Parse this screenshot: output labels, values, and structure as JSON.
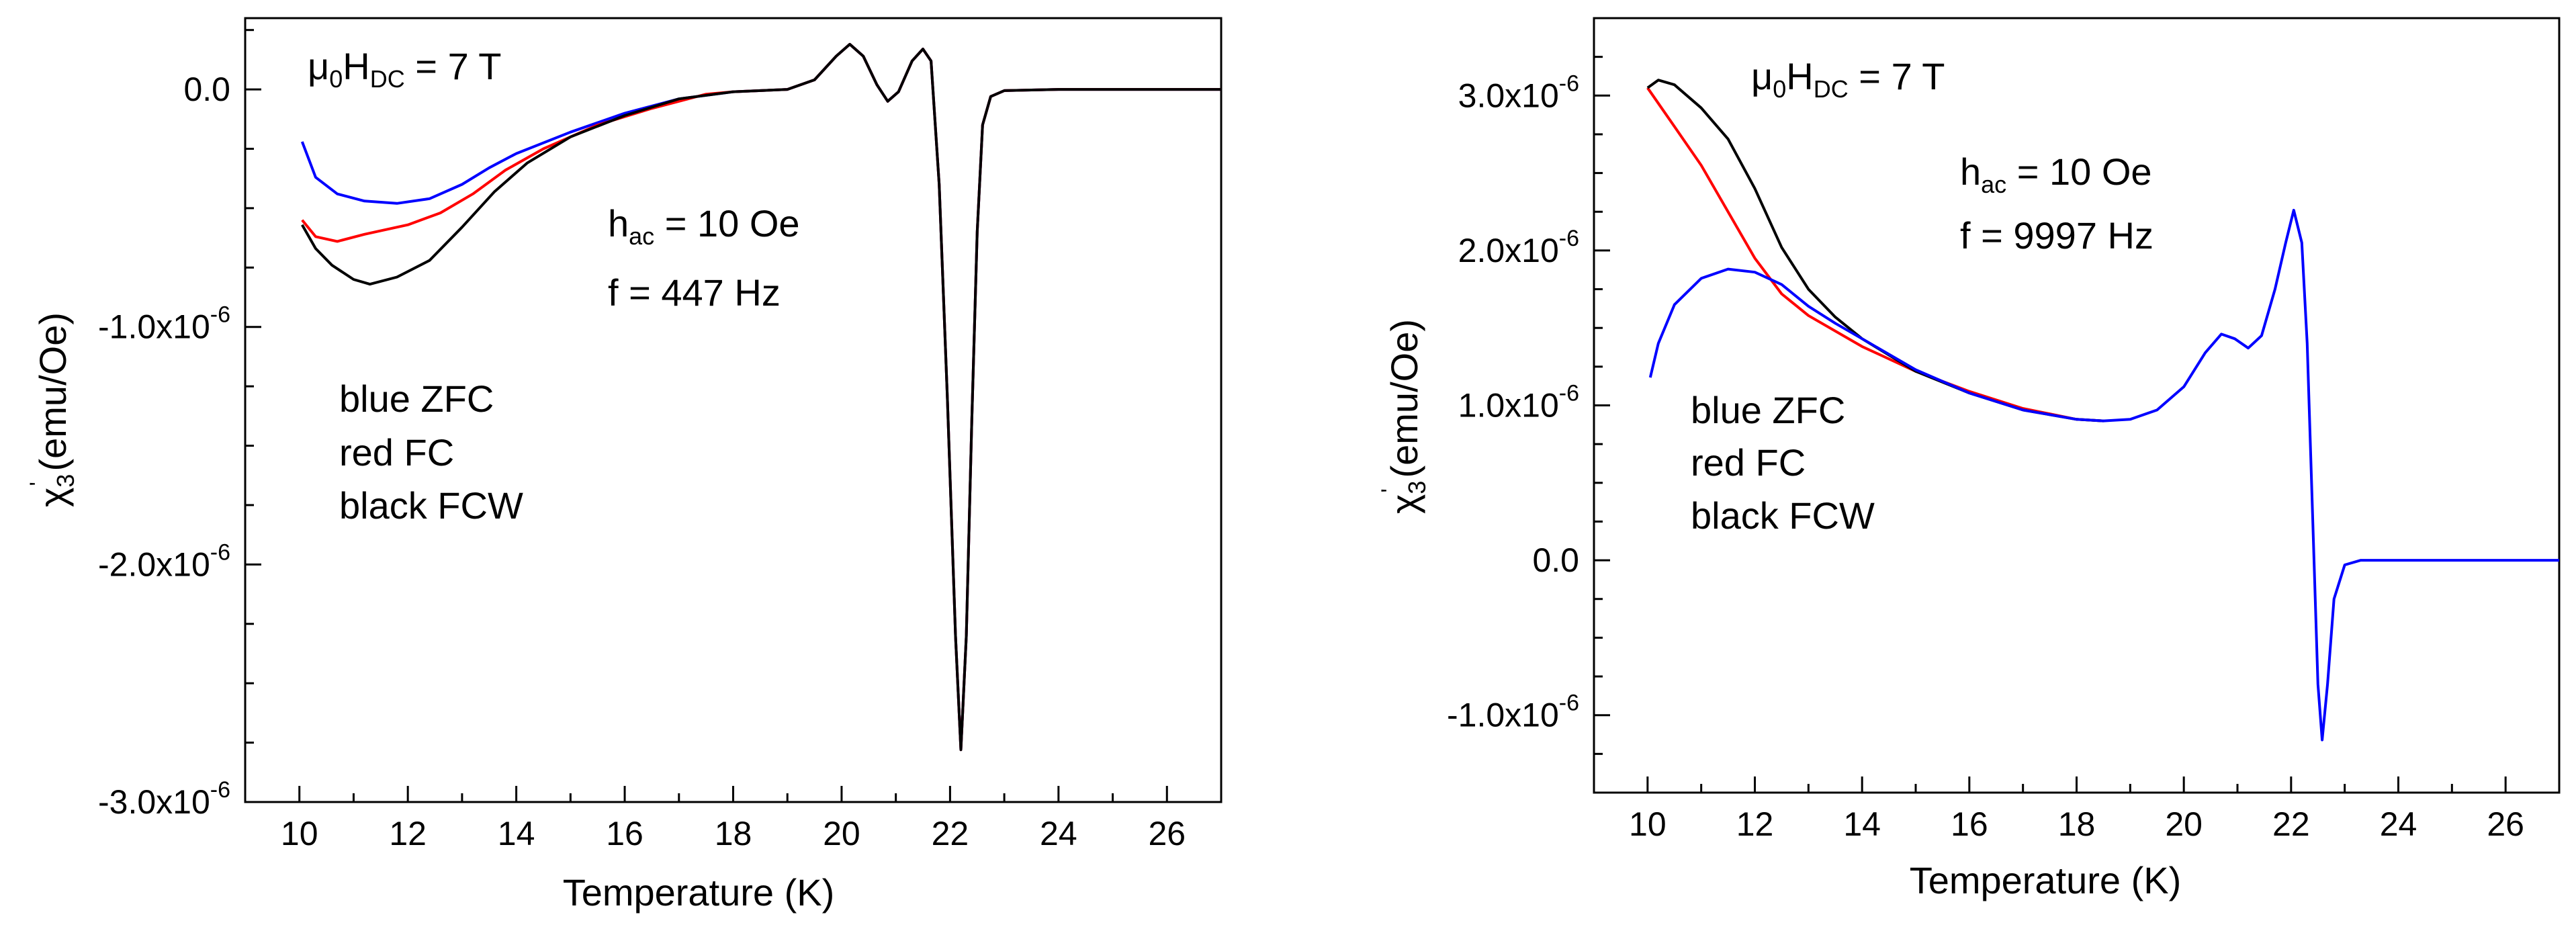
{
  "chart_data": [
    {
      "type": "line",
      "xlabel": "Temperature (K)",
      "ylabel": {
        "symbol": "χ",
        "sub": "3",
        "sup": "'",
        "unit": " (emu/Oe)"
      },
      "xlim": [
        9,
        27
      ],
      "ylim": [
        -3e-06,
        3e-07
      ],
      "x_ticks": [
        10,
        12,
        14,
        16,
        18,
        20,
        22,
        24,
        26
      ],
      "y_ticks": [
        {
          "value": 0.0,
          "mant": "0.0",
          "exp": ""
        },
        {
          "value": -1e-06,
          "mant": "-1.0x10",
          "exp": "-6"
        },
        {
          "value": -2e-06,
          "mant": "-2.0x10",
          "exp": "-6"
        },
        {
          "value": -3e-06,
          "mant": "-3.0x10",
          "exp": "-6"
        }
      ],
      "field": {
        "pre": "μ",
        "sub1": "0",
        "mid": "H",
        "sub2": "DC",
        "post": " = 7 T"
      },
      "hac": {
        "pre": "h",
        "sub": "ac",
        "post": " = 10 Oe"
      },
      "freq": "f = 447 Hz",
      "legend": [
        "blue ZFC",
        "red FC",
        "black FCW"
      ],
      "series": [
        {
          "name": "ZFC",
          "color": "#0000ff",
          "points": [
            [
              10.05,
              -2.2e-07
            ],
            [
              10.3,
              -3.7e-07
            ],
            [
              10.7,
              -4.4e-07
            ],
            [
              11.2,
              -4.7e-07
            ],
            [
              11.8,
              -4.8e-07
            ],
            [
              12.4,
              -4.6e-07
            ],
            [
              13.0,
              -4e-07
            ],
            [
              13.5,
              -3.3e-07
            ],
            [
              14.0,
              -2.7e-07
            ],
            [
              15.0,
              -1.8e-07
            ],
            [
              16.0,
              -1e-07
            ],
            [
              17.0,
              -4e-08
            ],
            [
              18.0,
              -1e-08
            ],
            [
              19.0,
              0.0
            ],
            [
              19.5,
              4e-08
            ],
            [
              19.9,
              1.4e-07
            ],
            [
              20.15,
              1.9e-07
            ],
            [
              20.4,
              1.4e-07
            ],
            [
              20.65,
              2e-08
            ],
            [
              20.85,
              -5e-08
            ],
            [
              21.05,
              -1e-08
            ],
            [
              21.3,
              1.2e-07
            ],
            [
              21.5,
              1.7e-07
            ],
            [
              21.65,
              1.2e-07
            ],
            [
              21.8,
              -4e-07
            ],
            [
              21.95,
              -1.3e-06
            ],
            [
              22.1,
              -2.3e-06
            ],
            [
              22.2,
              -2.78e-06
            ],
            [
              22.3,
              -2.3e-06
            ],
            [
              22.4,
              -1.4e-06
            ],
            [
              22.5,
              -6e-07
            ],
            [
              22.6,
              -1.5e-07
            ],
            [
              22.75,
              -3e-08
            ],
            [
              23.0,
              -5e-09
            ],
            [
              24.0,
              0.0
            ],
            [
              25.0,
              0.0
            ],
            [
              26.0,
              0.0
            ],
            [
              27.0,
              0.0
            ]
          ]
        },
        {
          "name": "FC",
          "color": "#ff0000",
          "points": [
            [
              10.05,
              -5.5e-07
            ],
            [
              10.3,
              -6.2e-07
            ],
            [
              10.7,
              -6.4e-07
            ],
            [
              11.2,
              -6.1e-07
            ],
            [
              12.0,
              -5.7e-07
            ],
            [
              12.6,
              -5.2e-07
            ],
            [
              13.2,
              -4.4e-07
            ],
            [
              13.8,
              -3.4e-07
            ],
            [
              14.5,
              -2.5e-07
            ],
            [
              15.5,
              -1.5e-07
            ],
            [
              16.5,
              -8e-08
            ],
            [
              17.5,
              -2e-08
            ],
            [
              18.0,
              -1e-08
            ],
            [
              19.0,
              0.0
            ],
            [
              19.5,
              4e-08
            ],
            [
              19.9,
              1.4e-07
            ],
            [
              20.15,
              1.9e-07
            ],
            [
              20.4,
              1.4e-07
            ],
            [
              20.65,
              2e-08
            ],
            [
              20.85,
              -5e-08
            ],
            [
              21.05,
              -1e-08
            ],
            [
              21.3,
              1.2e-07
            ],
            [
              21.5,
              1.7e-07
            ],
            [
              21.65,
              1.2e-07
            ],
            [
              21.8,
              -4e-07
            ],
            [
              21.95,
              -1.3e-06
            ],
            [
              22.1,
              -2.3e-06
            ],
            [
              22.2,
              -2.78e-06
            ],
            [
              22.3,
              -2.3e-06
            ],
            [
              22.4,
              -1.4e-06
            ],
            [
              22.5,
              -6e-07
            ],
            [
              22.6,
              -1.5e-07
            ],
            [
              22.75,
              -3e-08
            ],
            [
              23.0,
              -5e-09
            ],
            [
              24.0,
              0.0
            ],
            [
              25.0,
              0.0
            ],
            [
              26.0,
              0.0
            ],
            [
              27.0,
              0.0
            ]
          ]
        },
        {
          "name": "FCW",
          "color": "#000000",
          "points": [
            [
              10.05,
              -5.7e-07
            ],
            [
              10.3,
              -6.7e-07
            ],
            [
              10.6,
              -7.4e-07
            ],
            [
              11.0,
              -8e-07
            ],
            [
              11.3,
              -8.2e-07
            ],
            [
              11.8,
              -7.9e-07
            ],
            [
              12.4,
              -7.2e-07
            ],
            [
              13.0,
              -5.8e-07
            ],
            [
              13.6,
              -4.3e-07
            ],
            [
              14.2,
              -3.1e-07
            ],
            [
              15.0,
              -2e-07
            ],
            [
              16.0,
              -1.1e-07
            ],
            [
              17.0,
              -4e-08
            ],
            [
              18.0,
              -1e-08
            ],
            [
              19.0,
              0.0
            ],
            [
              19.5,
              4e-08
            ],
            [
              19.9,
              1.4e-07
            ],
            [
              20.15,
              1.9e-07
            ],
            [
              20.4,
              1.4e-07
            ],
            [
              20.65,
              2e-08
            ],
            [
              20.85,
              -5e-08
            ],
            [
              21.05,
              -1e-08
            ],
            [
              21.3,
              1.2e-07
            ],
            [
              21.5,
              1.7e-07
            ],
            [
              21.65,
              1.2e-07
            ],
            [
              21.8,
              -4e-07
            ],
            [
              21.95,
              -1.3e-06
            ],
            [
              22.1,
              -2.3e-06
            ],
            [
              22.2,
              -2.78e-06
            ],
            [
              22.3,
              -2.3e-06
            ],
            [
              22.4,
              -1.4e-06
            ],
            [
              22.5,
              -6e-07
            ],
            [
              22.6,
              -1.5e-07
            ],
            [
              22.75,
              -3e-08
            ],
            [
              23.0,
              -5e-09
            ],
            [
              24.0,
              0.0
            ],
            [
              25.0,
              0.0
            ],
            [
              26.0,
              0.0
            ],
            [
              27.0,
              0.0
            ]
          ]
        }
      ]
    },
    {
      "type": "line",
      "xlabel": "Temperature (K)",
      "ylabel": {
        "symbol": "χ",
        "sub": "3",
        "sup": "'",
        "unit": " (emu/Oe)"
      },
      "xlim": [
        9,
        27
      ],
      "ylim": [
        -1.5e-06,
        3.5e-06
      ],
      "x_ticks": [
        10,
        12,
        14,
        16,
        18,
        20,
        22,
        24,
        26
      ],
      "y_ticks": [
        {
          "value": 3e-06,
          "mant": "3.0x10",
          "exp": "-6"
        },
        {
          "value": 2e-06,
          "mant": "2.0x10",
          "exp": "-6"
        },
        {
          "value": 1e-06,
          "mant": "1.0x10",
          "exp": "-6"
        },
        {
          "value": 0.0,
          "mant": "0.0",
          "exp": ""
        },
        {
          "value": -1e-06,
          "mant": "-1.0x10",
          "exp": "-6"
        }
      ],
      "field": {
        "pre": "μ",
        "sub1": "0",
        "mid": "H",
        "sub2": "DC",
        "post": " = 7 T"
      },
      "hac": {
        "pre": "h",
        "sub": "ac",
        "post": " = 10 Oe"
      },
      "freq": "f = 9997 Hz",
      "legend": [
        "blue ZFC",
        "red FC",
        "black FCW"
      ],
      "series": [
        {
          "name": "FC",
          "color": "#ff0000",
          "points": [
            [
              10.0,
              3.05e-06
            ],
            [
              10.2,
              2.95e-06
            ],
            [
              10.5,
              2.8e-06
            ],
            [
              11.0,
              2.55e-06
            ],
            [
              11.5,
              2.25e-06
            ],
            [
              12.0,
              1.95e-06
            ],
            [
              12.5,
              1.72e-06
            ],
            [
              13.0,
              1.58e-06
            ],
            [
              14.0,
              1.38e-06
            ],
            [
              15.0,
              1.22e-06
            ],
            [
              16.0,
              1.09e-06
            ],
            [
              17.0,
              9.8e-07
            ],
            [
              18.0,
              9.1e-07
            ],
            [
              18.5,
              9e-07
            ]
          ]
        },
        {
          "name": "FCW",
          "color": "#000000",
          "points": [
            [
              10.0,
              3.05e-06
            ],
            [
              10.2,
              3.1e-06
            ],
            [
              10.5,
              3.07e-06
            ],
            [
              11.0,
              2.92e-06
            ],
            [
              11.5,
              2.72e-06
            ],
            [
              12.0,
              2.4e-06
            ],
            [
              12.5,
              2.02e-06
            ],
            [
              13.0,
              1.75e-06
            ],
            [
              13.5,
              1.57e-06
            ],
            [
              14.0,
              1.43e-06
            ],
            [
              15.0,
              1.22e-06
            ],
            [
              16.0,
              1.08e-06
            ],
            [
              17.0,
              9.7e-07
            ],
            [
              18.0,
              9.1e-07
            ],
            [
              18.5,
              9e-07
            ]
          ]
        },
        {
          "name": "ZFC",
          "color": "#0000ff",
          "points": [
            [
              10.05,
              1.18e-06
            ],
            [
              10.2,
              1.4e-06
            ],
            [
              10.5,
              1.65e-06
            ],
            [
              11.0,
              1.82e-06
            ],
            [
              11.5,
              1.88e-06
            ],
            [
              12.0,
              1.86e-06
            ],
            [
              12.5,
              1.78e-06
            ],
            [
              13.0,
              1.64e-06
            ],
            [
              13.5,
              1.53e-06
            ],
            [
              14.0,
              1.43e-06
            ],
            [
              15.0,
              1.23e-06
            ],
            [
              16.0,
              1.08e-06
            ],
            [
              17.0,
              9.7e-07
            ],
            [
              18.0,
              9.1e-07
            ],
            [
              18.5,
              9e-07
            ],
            [
              19.0,
              9.1e-07
            ],
            [
              19.5,
              9.7e-07
            ],
            [
              20.0,
              1.12e-06
            ],
            [
              20.4,
              1.34e-06
            ],
            [
              20.7,
              1.46e-06
            ],
            [
              20.95,
              1.43e-06
            ],
            [
              21.2,
              1.37e-06
            ],
            [
              21.45,
              1.45e-06
            ],
            [
              21.7,
              1.75e-06
            ],
            [
              21.9,
              2.05e-06
            ],
            [
              22.05,
              2.26e-06
            ],
            [
              22.2,
              2.05e-06
            ],
            [
              22.3,
              1.4e-06
            ],
            [
              22.4,
              3e-07
            ],
            [
              22.5,
              -8e-07
            ],
            [
              22.58,
              -1.16e-06
            ],
            [
              22.68,
              -8e-07
            ],
            [
              22.8,
              -2.5e-07
            ],
            [
              23.0,
              -3e-08
            ],
            [
              23.3,
              0.0
            ],
            [
              24.0,
              0.0
            ],
            [
              25.0,
              0.0
            ],
            [
              26.0,
              0.0
            ],
            [
              27.0,
              0.0
            ]
          ]
        }
      ]
    }
  ]
}
